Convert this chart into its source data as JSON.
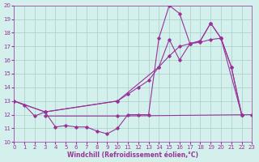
{
  "xlabel": "Windchill (Refroidissement éolien,°C)",
  "xlim": [
    0,
    23
  ],
  "ylim": [
    10,
    20
  ],
  "bg_color": "#d4f0ec",
  "grid_color": "#aaccc8",
  "line_color": "#993399",
  "x_ticks": [
    0,
    1,
    2,
    3,
    4,
    5,
    6,
    7,
    8,
    9,
    10,
    11,
    12,
    13,
    14,
    15,
    16,
    17,
    18,
    19,
    20,
    21,
    22,
    23
  ],
  "y_ticks": [
    10,
    11,
    12,
    13,
    14,
    15,
    16,
    17,
    18,
    19,
    20
  ],
  "series": [
    {
      "x": [
        0,
        1,
        2,
        3,
        4,
        5,
        6,
        7,
        8,
        9,
        10,
        11,
        12,
        13,
        14,
        15,
        16,
        17,
        18,
        19,
        20,
        21,
        22
      ],
      "y": [
        13.0,
        12.7,
        11.9,
        12.2,
        11.1,
        11.2,
        11.1,
        11.1,
        10.8,
        10.6,
        11.0,
        12.0,
        12.0,
        12.0,
        17.6,
        20.0,
        19.4,
        17.2,
        17.3,
        17.5,
        17.6,
        15.5,
        12.0
      ]
    },
    {
      "x": [
        0,
        3,
        10,
        11,
        12,
        13,
        14,
        15,
        16,
        17,
        18,
        19,
        20,
        21,
        22
      ],
      "y": [
        13.0,
        12.2,
        13.0,
        13.5,
        14.0,
        14.5,
        15.5,
        17.5,
        16.0,
        17.2,
        17.4,
        18.7,
        17.6,
        15.5,
        12.0
      ]
    },
    {
      "x": [
        0,
        3,
        10,
        14,
        15,
        16,
        17,
        18,
        19,
        20,
        22
      ],
      "y": [
        13.0,
        12.2,
        13.0,
        15.5,
        16.3,
        17.0,
        17.2,
        17.4,
        18.7,
        17.6,
        12.0
      ]
    },
    {
      "x": [
        3,
        10,
        23
      ],
      "y": [
        11.9,
        11.9,
        12.0
      ]
    }
  ]
}
